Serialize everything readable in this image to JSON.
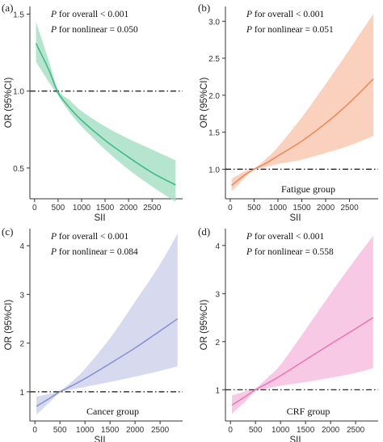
{
  "figure": {
    "panels": [
      {
        "id": "a",
        "panel_label": "(a)",
        "group_label": "",
        "stat_overall": "for overall < 0.001",
        "stat_nonlinear": "for nonlinear = 0.050",
        "stat_prefix": "P",
        "color": "#3dbb8b",
        "band_color": "#9ddcbf"
      },
      {
        "id": "b",
        "panel_label": "(b)",
        "group_label": "Fatigue group",
        "stat_overall": "for overall < 0.001",
        "stat_nonlinear": "for nonlinear = 0.051",
        "stat_prefix": "P",
        "color": "#f08a5d",
        "band_color": "#f8c1a6"
      },
      {
        "id": "c",
        "panel_label": "(c)",
        "group_label": "Cancer group",
        "stat_overall": "for overall < 0.001",
        "stat_nonlinear": "for nonlinear = 0.084",
        "stat_prefix": "P",
        "color": "#8b93cf",
        "band_color": "#c9cde8"
      },
      {
        "id": "d",
        "panel_label": "(d)",
        "group_label": "CRF group",
        "stat_overall": "for overall < 0.001",
        "stat_nonlinear": "for nonlinear = 0.558",
        "stat_prefix": "P",
        "color": "#e77cb8",
        "band_color": "#f5b7dc"
      }
    ]
  },
  "chart_data": [
    {
      "type": "line",
      "panel": "a",
      "xlabel": "SII",
      "ylabel": "OR (95%CI)",
      "xlim": [
        -100,
        3150
      ],
      "ylim": [
        0.3,
        1.55
      ],
      "xticks": [
        0,
        500,
        1000,
        1500,
        2000,
        2500
      ],
      "xtick_labels": [
        "0",
        "500",
        "1000",
        "1500",
        "2000",
        "2500"
      ],
      "yticks": [
        0.5,
        1.0,
        1.5
      ],
      "ytick_labels": [
        "0.5",
        "1.0",
        "1.5"
      ],
      "reference_line": 1.0,
      "series": [
        {
          "x": [
            30,
            300,
            500,
            750,
            1000,
            1500,
            2000,
            2500,
            3000
          ],
          "y": [
            1.31,
            1.14,
            0.99,
            0.89,
            0.81,
            0.68,
            0.57,
            0.47,
            0.39
          ],
          "lower": [
            1.19,
            1.06,
            0.97,
            0.86,
            0.77,
            0.62,
            0.49,
            0.38,
            0.28
          ],
          "upper": [
            1.45,
            1.2,
            1.01,
            0.94,
            0.87,
            0.77,
            0.69,
            0.62,
            0.55
          ]
        }
      ]
    },
    {
      "type": "line",
      "panel": "b",
      "xlabel": "SII",
      "ylabel": "OR (95%CI)",
      "xlim": [
        -100,
        3100
      ],
      "ylim": [
        0.6,
        3.2
      ],
      "xticks": [
        0,
        500,
        1000,
        1500,
        2000,
        2500
      ],
      "xtick_labels": [
        "0",
        "500",
        "1000",
        "1500",
        "2000",
        "2500"
      ],
      "yticks": [
        1.0,
        1.5,
        2.0,
        2.5,
        3.0
      ],
      "ytick_labels": [
        "1.0",
        "1.5",
        "2.0",
        "2.5",
        "3.0"
      ],
      "reference_line": 1.0,
      "series": [
        {
          "x": [
            30,
            300,
            500,
            750,
            1000,
            1500,
            2000,
            2500,
            3000
          ],
          "y": [
            0.78,
            0.92,
            1.0,
            1.08,
            1.18,
            1.38,
            1.62,
            1.9,
            2.22
          ],
          "lower": [
            0.7,
            0.88,
            0.99,
            1.03,
            1.07,
            1.13,
            1.22,
            1.32,
            1.45
          ],
          "upper": [
            0.87,
            0.97,
            1.01,
            1.14,
            1.3,
            1.7,
            2.15,
            2.62,
            3.1
          ]
        }
      ]
    },
    {
      "type": "line",
      "panel": "c",
      "xlabel": "SII",
      "ylabel": "OR (95%CI)",
      "xlim": [
        -100,
        2950
      ],
      "ylim": [
        0.4,
        4.35
      ],
      "xticks": [
        0,
        500,
        1000,
        1500,
        2000,
        2500
      ],
      "xtick_labels": [
        "0",
        "500",
        "1000",
        "1500",
        "2000",
        "2500"
      ],
      "yticks": [
        1,
        2,
        3,
        4
      ],
      "ytick_labels": [
        "1",
        "2",
        "3",
        "4"
      ],
      "reference_line": 1.0,
      "series": [
        {
          "x": [
            30,
            300,
            500,
            750,
            1000,
            1500,
            2000,
            2500,
            2850
          ],
          "y": [
            0.7,
            0.87,
            1.0,
            1.13,
            1.27,
            1.58,
            1.9,
            2.25,
            2.5
          ],
          "lower": [
            0.53,
            0.79,
            0.98,
            1.05,
            1.1,
            1.2,
            1.31,
            1.43,
            1.52
          ],
          "upper": [
            0.9,
            0.96,
            1.02,
            1.22,
            1.47,
            2.1,
            2.85,
            3.62,
            4.25
          ]
        }
      ]
    },
    {
      "type": "line",
      "panel": "d",
      "xlabel": "SII",
      "ylabel": "OR (95%CI)",
      "xlim": [
        -100,
        2950
      ],
      "ylim": [
        0.35,
        4.35
      ],
      "xticks": [
        0,
        500,
        1000,
        1500,
        2000,
        2500
      ],
      "xtick_labels": [
        "0",
        "500",
        "1000",
        "1500",
        "2000",
        "2500"
      ],
      "yticks": [
        1,
        2,
        3,
        4
      ],
      "ytick_labels": [
        "1",
        "2",
        "3",
        "4"
      ],
      "reference_line": 1.0,
      "series": [
        {
          "x": [
            30,
            300,
            500,
            750,
            1000,
            1500,
            2000,
            2500,
            2850
          ],
          "y": [
            0.68,
            0.86,
            1.0,
            1.14,
            1.29,
            1.62,
            1.95,
            2.27,
            2.5
          ],
          "lower": [
            0.5,
            0.76,
            0.97,
            1.03,
            1.08,
            1.16,
            1.25,
            1.35,
            1.45
          ],
          "upper": [
            0.88,
            0.97,
            1.03,
            1.26,
            1.52,
            2.25,
            3.0,
            3.72,
            4.2
          ]
        }
      ]
    }
  ]
}
